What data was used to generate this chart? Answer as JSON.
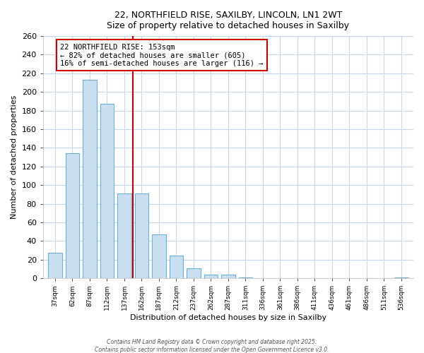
{
  "title1": "22, NORTHFIELD RISE, SAXILBY, LINCOLN, LN1 2WT",
  "title2": "Size of property relative to detached houses in Saxilby",
  "xlabel": "Distribution of detached houses by size in Saxilby",
  "ylabel": "Number of detached properties",
  "categories": [
    "37sqm",
    "62sqm",
    "87sqm",
    "112sqm",
    "137sqm",
    "162sqm",
    "187sqm",
    "212sqm",
    "237sqm",
    "262sqm",
    "287sqm",
    "311sqm",
    "336sqm",
    "361sqm",
    "386sqm",
    "411sqm",
    "436sqm",
    "461sqm",
    "486sqm",
    "511sqm",
    "536sqm"
  ],
  "values": [
    27,
    134,
    213,
    187,
    91,
    91,
    47,
    24,
    11,
    4,
    4,
    1,
    0,
    0,
    0,
    0,
    0,
    0,
    0,
    0,
    1
  ],
  "bar_color": "#c9dff0",
  "bar_edge_color": "#6aafd6",
  "ylim": [
    0,
    260
  ],
  "yticks": [
    0,
    20,
    40,
    60,
    80,
    100,
    120,
    140,
    160,
    180,
    200,
    220,
    240,
    260
  ],
  "annotation_title": "22 NORTHFIELD RISE: 153sqm",
  "annotation_line1": "← 82% of detached houses are smaller (605)",
  "annotation_line2": "16% of semi-detached houses are larger (116) →",
  "red_line_x": 5,
  "annotation_box_color": "#ffffff",
  "annotation_border_color": "#cc0000",
  "red_line_color": "#cc0000",
  "background_color": "#ffffff",
  "plot_background": "#ffffff",
  "grid_color": "#c8d8e8",
  "footer1": "Contains HM Land Registry data © Crown copyright and database right 2025.",
  "footer2": "Contains public sector information licensed under the Open Government Licence v3.0."
}
